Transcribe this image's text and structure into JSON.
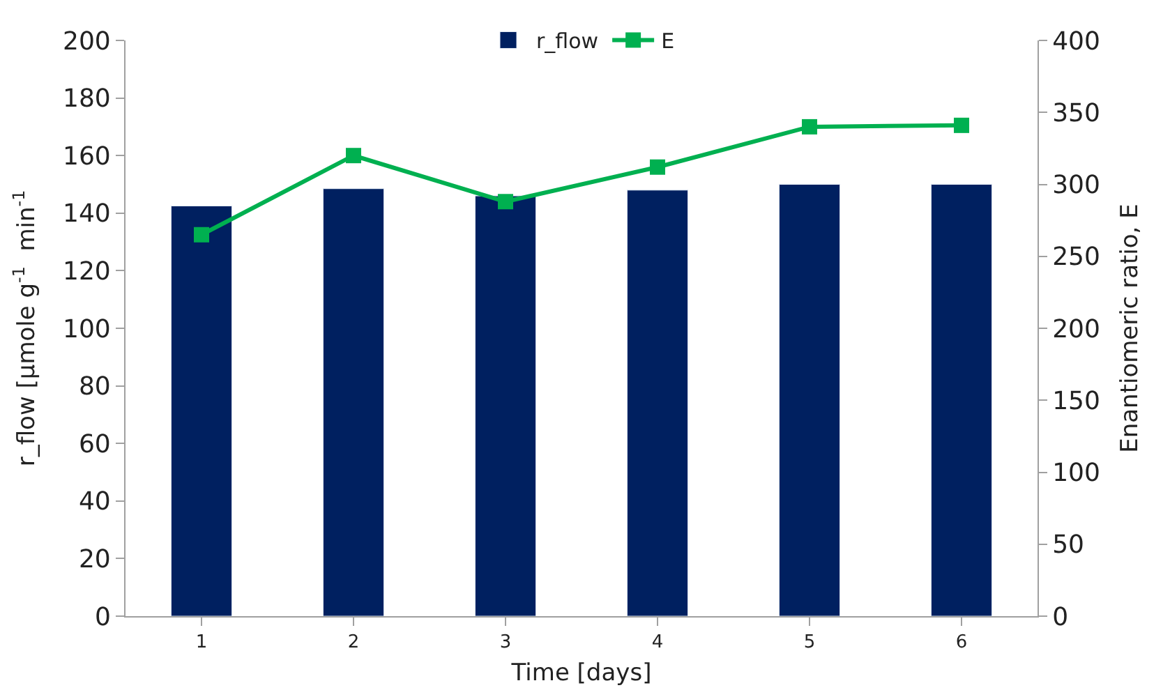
{
  "chart_data": {
    "type": "bar",
    "xlabel": "Time [days]",
    "ylabel": "r_flow [µmole g$^{-1}$  min$^{-1}$",
    "y2label": "Enantiomeric ratio, E",
    "categories": [
      "1",
      "2",
      "3",
      "4",
      "5",
      "6"
    ],
    "series": [
      {
        "name": "r_flow",
        "color": "#002060",
        "values": [
          142.5,
          148.5,
          146,
          148,
          150,
          150
        ]
      },
      {
        "name": "E",
        "type": "line",
        "axis": "y2",
        "color": "#00b050",
        "marker": "square",
        "line_style": "solid",
        "values": [
          265,
          320,
          288,
          312,
          340,
          341
        ]
      }
    ],
    "ylim": [
      0,
      200
    ],
    "yticks": [
      0,
      20,
      40,
      60,
      80,
      100,
      120,
      140,
      160,
      180,
      200
    ],
    "y2lim": [
      0,
      400
    ],
    "y2ticks": [
      0,
      50,
      100,
      150,
      200,
      250,
      300,
      350,
      400
    ],
    "legend": "top"
  }
}
